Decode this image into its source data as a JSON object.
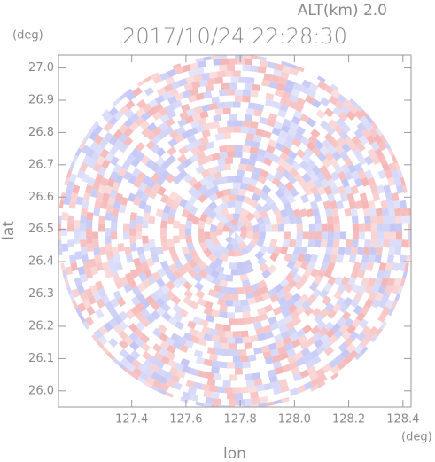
{
  "chart_data": {
    "type": "radar-ppi",
    "title": "2017/10/24 22:28:30",
    "subtitle": "ALT(km) 2.0",
    "x_label": "lon",
    "y_label": "lat",
    "x_unit": "(deg)",
    "y_unit": "(deg)",
    "xlim": [
      127.13,
      128.43
    ],
    "ylim": [
      25.95,
      27.04
    ],
    "xticks": [
      127.4,
      127.6,
      127.8,
      {
        "value": 128.0,
        "label": "128.0"
      },
      128.2,
      128.4
    ],
    "yticks": [
      {
        "value": 26.0,
        "label": "26.0"
      },
      26.1,
      26.2,
      26.3,
      26.4,
      26.5,
      26.6,
      26.7,
      26.8,
      26.9,
      {
        "value": 27.0,
        "label": "27.0"
      }
    ],
    "colors": [
      "#f5b5b5",
      "#c3c6f5"
    ]
  }
}
